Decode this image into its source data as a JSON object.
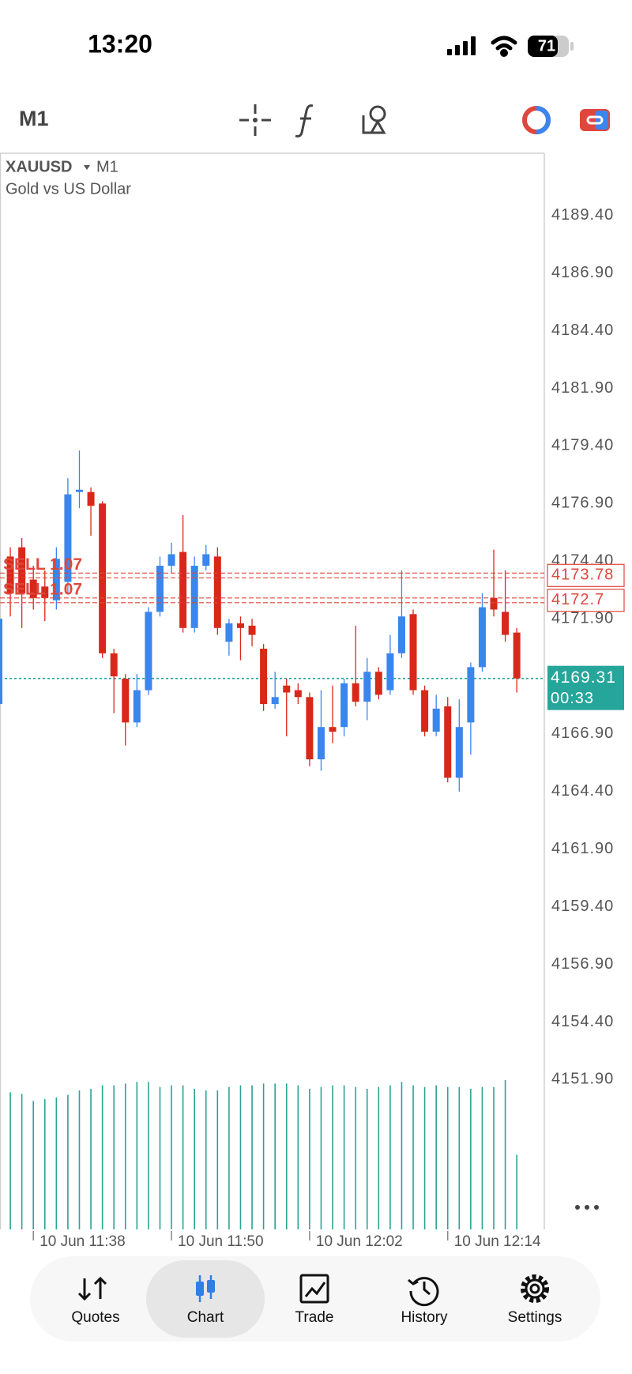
{
  "status_bar": {
    "time": "13:20",
    "battery": "71"
  },
  "toolbar": {
    "timeframe": "M1"
  },
  "chart_data": {
    "type": "candlestick",
    "symbol": "XAUUSD",
    "timeframe": "M1",
    "description": "Gold vs US Dollar",
    "categories": [
      null,
      null,
      null,
      "10 Jun 11:38",
      null,
      null,
      null,
      null,
      null,
      null,
      null,
      null,
      null,
      null,
      null,
      "10 Jun 11:50",
      null,
      null,
      null,
      null,
      null,
      null,
      null,
      null,
      null,
      null,
      null,
      "10 Jun 12:02",
      null,
      null,
      null,
      null,
      null,
      null,
      null,
      null,
      null,
      null,
      null,
      "10 Jun 12:14",
      null,
      null,
      null,
      null,
      null,
      null
    ],
    "open": [
      4168.2,
      4174.6,
      4175.0,
      4173.6,
      4173.3,
      4172.7,
      4173.5,
      4177.4,
      4177.4,
      4176.9,
      4170.4,
      4169.3,
      4167.4,
      4168.8,
      4172.2,
      4174.2,
      4174.8,
      4171.5,
      4174.2,
      4174.6,
      4170.9,
      4171.7,
      4171.6,
      4170.6,
      4168.2,
      4169.0,
      4168.8,
      4168.5,
      4165.8,
      4167.2,
      4167.2,
      4169.1,
      4168.3,
      4169.6,
      4168.8,
      4170.4,
      4172.1,
      4168.8,
      4167.0,
      4168.1,
      4165.0,
      4167.4,
      4169.8,
      4172.8,
      4172.2,
      4171.3
    ],
    "high": [
      4172.2,
      4175.0,
      4175.4,
      4174.2,
      4174.0,
      4175.0,
      4178.0,
      4179.2,
      4177.6,
      4177.0,
      4170.6,
      4169.5,
      4169.5,
      4172.4,
      4174.6,
      4175.2,
      4176.4,
      4174.6,
      4175.1,
      4175.0,
      4171.9,
      4172.0,
      4171.9,
      4170.8,
      4169.6,
      4169.3,
      4169.1,
      4168.7,
      4168.8,
      4169.0,
      4169.3,
      4171.6,
      4170.2,
      4169.8,
      4171.2,
      4174.0,
      4172.3,
      4169.0,
      4168.6,
      4168.5,
      4168.4,
      4170.0,
      4173.0,
      4174.9,
      4174.0,
      4171.5
    ],
    "low": [
      4167.9,
      4172.0,
      4171.5,
      4172.3,
      4171.8,
      4172.3,
      4173.0,
      4176.7,
      4175.5,
      4170.2,
      4167.8,
      4166.4,
      4167.2,
      4168.6,
      4172.0,
      4173.9,
      4171.3,
      4171.3,
      4174.0,
      4171.2,
      4170.3,
      4170.1,
      4170.7,
      4167.9,
      4168.0,
      4166.8,
      4168.2,
      4165.5,
      4165.3,
      4166.5,
      4166.8,
      4168.1,
      4167.5,
      4168.4,
      4168.6,
      4170.2,
      4168.6,
      4166.8,
      4166.8,
      4164.8,
      4164.4,
      4166.0,
      4169.6,
      4172.0,
      4170.9,
      4168.7
    ],
    "close": [
      4171.9,
      4173.0,
      4173.0,
      4172.8,
      4172.8,
      4174.5,
      4177.3,
      4177.5,
      4176.8,
      4170.4,
      4169.4,
      4167.4,
      4168.8,
      4172.2,
      4174.2,
      4174.7,
      4171.5,
      4174.2,
      4174.7,
      4171.5,
      4171.7,
      4171.5,
      4171.2,
      4168.2,
      4168.5,
      4168.7,
      4168.5,
      4165.8,
      4167.2,
      4167.0,
      4169.1,
      4168.3,
      4169.6,
      4168.6,
      4170.4,
      4172.0,
      4168.8,
      4167.0,
      4168.0,
      4165.0,
      4167.2,
      4169.8,
      4172.4,
      4172.3,
      4171.2,
      4169.31
    ],
    "volume": [
      158,
      158,
      156,
      148,
      150,
      152,
      155,
      160,
      162,
      166,
      166,
      168,
      170,
      170,
      164,
      166,
      166,
      162,
      160,
      160,
      164,
      166,
      166,
      168,
      168,
      168,
      166,
      162,
      164,
      166,
      166,
      164,
      162,
      164,
      166,
      170,
      166,
      164,
      166,
      164,
      164,
      162,
      164,
      164,
      172,
      86
    ],
    "up_color": "#3a85ee",
    "down_color": "#d8281a",
    "volume_color": "#2aa394",
    "ylim": [
      4145.4,
      4192.1
    ],
    "yticks": [
      {
        "value": 4189.4,
        "label": "4189.40"
      },
      {
        "value": 4186.9,
        "label": "4186.90"
      },
      {
        "value": 4184.4,
        "label": "4184.40"
      },
      {
        "value": 4181.9,
        "label": "4181.90"
      },
      {
        "value": 4179.4,
        "label": "4179.40"
      },
      {
        "value": 4176.9,
        "label": "4176.90"
      },
      {
        "value": 4174.4,
        "label": "4174.40"
      },
      {
        "value": 4171.9,
        "label": "4171.90"
      },
      {
        "value": 4169.4,
        "label": "4169.40"
      },
      {
        "value": 4166.9,
        "label": "4166.90"
      },
      {
        "value": 4164.4,
        "label": "4164.40"
      },
      {
        "value": 4161.9,
        "label": "4161.90"
      },
      {
        "value": 4159.4,
        "label": "4159.40"
      },
      {
        "value": 4156.9,
        "label": "4156.90"
      },
      {
        "value": 4154.4,
        "label": "4154.40"
      },
      {
        "value": 4151.9,
        "label": "4151.90"
      }
    ],
    "orders": [
      {
        "label": "SELL 1.07",
        "price": 4173.78
      },
      {
        "label": "SELL 1.07",
        "price": 4172.7
      }
    ],
    "order_color": "#e0473c",
    "bid": {
      "value": 4169.31,
      "timer": "00:33",
      "color": "#26a69a"
    }
  },
  "nav": {
    "items": [
      "Quotes",
      "Chart",
      "Trade",
      "History",
      "Settings"
    ],
    "active": 1
  }
}
